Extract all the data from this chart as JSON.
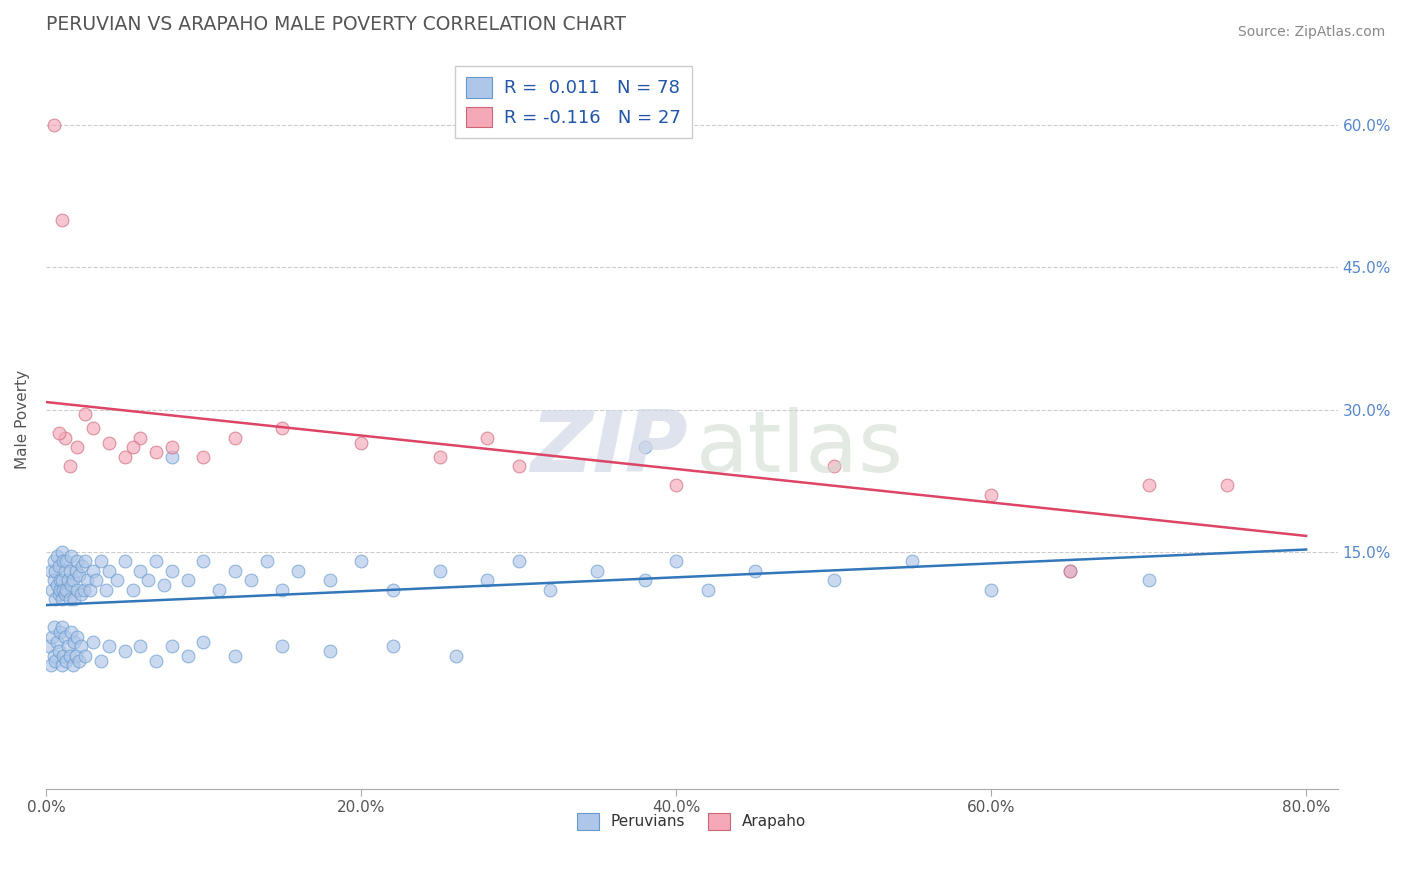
{
  "title": "PERUVIAN VS ARAPAHO MALE POVERTY CORRELATION CHART",
  "source": "Source: ZipAtlas.com",
  "xlabel_ticks": [
    "0.0%",
    "20.0%",
    "40.0%",
    "60.0%",
    "80.0%"
  ],
  "xlabel_vals": [
    0,
    20,
    40,
    60,
    80
  ],
  "ylabel_ticks": [
    "15.0%",
    "30.0%",
    "45.0%",
    "60.0%"
  ],
  "ylabel_vals": [
    15,
    30,
    45,
    60
  ],
  "xlim": [
    0,
    82
  ],
  "ylim": [
    -10,
    68
  ],
  "legend_blue_r": "0.011",
  "legend_blue_n": "78",
  "legend_pink_r": "-0.116",
  "legend_pink_n": "27",
  "blue_fill": "#aec6e8",
  "blue_edge": "#6699cc",
  "pink_fill": "#f4a8b8",
  "pink_edge": "#cc6677",
  "blue_line": "#3377bb",
  "pink_line": "#dd4466",
  "ylabel": "Male Poverty",
  "watermark_zip": "ZIP",
  "watermark_atlas": "atlas",
  "peru_x": [
    0.3,
    0.4,
    0.5,
    0.5,
    0.6,
    0.6,
    0.7,
    0.7,
    0.8,
    0.8,
    0.9,
    0.9,
    1.0,
    1.0,
    1.0,
    1.1,
    1.1,
    1.2,
    1.2,
    1.3,
    1.3,
    1.4,
    1.5,
    1.5,
    1.6,
    1.6,
    1.7,
    1.8,
    1.9,
    2.0,
    2.0,
    2.1,
    2.2,
    2.3,
    2.4,
    2.5,
    2.6,
    2.8,
    3.0,
    3.2,
    3.5,
    3.8,
    4.0,
    4.5,
    5.0,
    5.5,
    6.0,
    6.5,
    7.0,
    7.5,
    8.0,
    9.0,
    10.0,
    11.0,
    12.0,
    13.0,
    14.0,
    15.0,
    16.0,
    18.0,
    20.0,
    22.0,
    25.0,
    28.0,
    30.0,
    32.0,
    35.0,
    38.0,
    40.0,
    42.0,
    45.0,
    50.0,
    55.0,
    60.0,
    65.0,
    70.0,
    38.0,
    8.0
  ],
  "peru_y": [
    13.0,
    11.0,
    12.0,
    14.0,
    10.0,
    13.0,
    11.5,
    14.5,
    10.5,
    13.5,
    11.0,
    12.0,
    10.0,
    12.0,
    15.0,
    11.0,
    14.0,
    10.5,
    13.0,
    11.0,
    14.0,
    12.0,
    10.0,
    13.0,
    11.5,
    14.5,
    12.0,
    10.0,
    13.0,
    11.0,
    14.0,
    12.5,
    10.5,
    13.5,
    11.0,
    14.0,
    12.0,
    11.0,
    13.0,
    12.0,
    14.0,
    11.0,
    13.0,
    12.0,
    14.0,
    11.0,
    13.0,
    12.0,
    14.0,
    11.5,
    13.0,
    12.0,
    14.0,
    11.0,
    13.0,
    12.0,
    14.0,
    11.0,
    13.0,
    12.0,
    14.0,
    11.0,
    13.0,
    12.0,
    14.0,
    11.0,
    13.0,
    12.0,
    14.0,
    11.0,
    13.0,
    12.0,
    14.0,
    11.0,
    13.0,
    12.0,
    26.0,
    25.0
  ],
  "peru_low_x": [
    0.2,
    0.3,
    0.4,
    0.5,
    0.5,
    0.6,
    0.7,
    0.8,
    0.9,
    1.0,
    1.0,
    1.1,
    1.2,
    1.3,
    1.4,
    1.5,
    1.6,
    1.7,
    1.8,
    1.9,
    2.0,
    2.1,
    2.2,
    2.5,
    3.0,
    3.5,
    4.0,
    5.0,
    6.0,
    7.0,
    8.0,
    9.0,
    10.0,
    12.0,
    15.0,
    18.0,
    22.0,
    26.0
  ],
  "peru_low_y": [
    5.0,
    3.0,
    6.0,
    4.0,
    7.0,
    3.5,
    5.5,
    4.5,
    6.5,
    3.0,
    7.0,
    4.0,
    6.0,
    3.5,
    5.0,
    4.0,
    6.5,
    3.0,
    5.5,
    4.0,
    6.0,
    3.5,
    5.0,
    4.0,
    5.5,
    3.5,
    5.0,
    4.5,
    5.0,
    3.5,
    5.0,
    4.0,
    5.5,
    4.0,
    5.0,
    4.5,
    5.0,
    4.0
  ],
  "arap_x": [
    0.5,
    1.0,
    1.2,
    1.5,
    2.0,
    3.0,
    4.0,
    5.0,
    6.0,
    7.0,
    8.0,
    10.0,
    12.0,
    15.0,
    20.0,
    25.0,
    30.0,
    40.0,
    50.0,
    60.0,
    70.0,
    75.0,
    0.8,
    2.5,
    5.5,
    28.0,
    65.0
  ],
  "arap_y": [
    60.0,
    50.0,
    27.0,
    24.0,
    26.0,
    28.0,
    26.5,
    25.0,
    27.0,
    25.5,
    26.0,
    25.0,
    27.0,
    28.0,
    26.5,
    25.0,
    24.0,
    22.0,
    24.0,
    21.0,
    22.0,
    22.0,
    27.5,
    29.5,
    26.0,
    27.0,
    13.0
  ]
}
